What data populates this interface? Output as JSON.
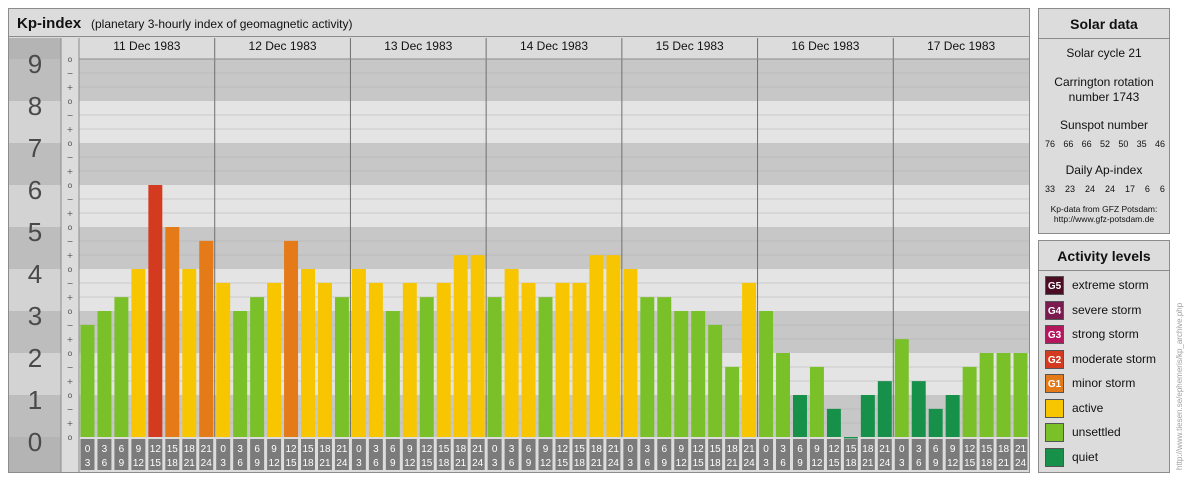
{
  "header": {
    "title": "Kp-index",
    "subtitle": "(planetary 3-hourly index of geomagnetic activity)"
  },
  "chart_data": {
    "type": "bar",
    "ylim": [
      0,
      9
    ],
    "y_ticks": [
      "0",
      "1",
      "2",
      "3",
      "4",
      "5",
      "6",
      "7",
      "8",
      "9"
    ],
    "minor_tick_labels": [
      "o",
      "+",
      "−"
    ],
    "days": [
      "11 Dec 1983",
      "12 Dec 1983",
      "13 Dec 1983",
      "14 Dec 1983",
      "15 Dec 1983",
      "16 Dec 1983",
      "17 Dec 1983"
    ],
    "interval_labels": [
      [
        "0",
        "3"
      ],
      [
        "3",
        "6"
      ],
      [
        "6",
        "9"
      ],
      [
        "9",
        "12"
      ],
      [
        "12",
        "15"
      ],
      [
        "15",
        "18"
      ],
      [
        "18",
        "21"
      ],
      [
        "21",
        "24"
      ]
    ],
    "values": [
      [
        2.67,
        3.0,
        3.33,
        4.0,
        6.0,
        5.0,
        4.0,
        4.67
      ],
      [
        3.67,
        3.0,
        3.33,
        3.67,
        4.67,
        4.0,
        3.67,
        3.33
      ],
      [
        4.0,
        3.67,
        3.0,
        3.67,
        3.33,
        3.67,
        4.33,
        4.33
      ],
      [
        3.33,
        4.0,
        3.67,
        3.33,
        3.67,
        3.67,
        4.33,
        4.33
      ],
      [
        4.0,
        3.33,
        3.33,
        3.0,
        3.0,
        2.67,
        1.67,
        3.67
      ],
      [
        3.0,
        2.0,
        1.0,
        1.67,
        0.67,
        0.0,
        1.0,
        1.33
      ],
      [
        2.33,
        1.33,
        0.67,
        1.0,
        1.67,
        2.0,
        2.0,
        2.0
      ]
    ],
    "color_scale": {
      "quiet": "#17904a",
      "unsettled": "#7ac029",
      "active": "#f7c600",
      "minor": "#e47a18",
      "moderate": "#d43a20"
    },
    "grid": true
  },
  "solar": {
    "title": "Solar data",
    "cycle": "Solar cycle 21",
    "carrington": "Carrington rotation number 1743",
    "sunspot_label": "Sunspot number",
    "sunspot": [
      "76",
      "66",
      "66",
      "52",
      "50",
      "35",
      "46"
    ],
    "ap_label": "Daily Ap-index",
    "ap": [
      "33",
      "23",
      "24",
      "24",
      "17",
      "6",
      "6"
    ],
    "source_line1": "Kp-data from GFZ Potsdam:",
    "source_line2": "http://www.gfz-potsdam.de"
  },
  "levels": {
    "title": "Activity levels",
    "items": [
      {
        "code": "G5",
        "label": "extreme storm",
        "color": "#4a0d24"
      },
      {
        "code": "G4",
        "label": "severe storm",
        "color": "#7a1a4e"
      },
      {
        "code": "G3",
        "label": "strong storm",
        "color": "#b5175e"
      },
      {
        "code": "G2",
        "label": "moderate storm",
        "color": "#d43a20"
      },
      {
        "code": "G1",
        "label": "minor storm",
        "color": "#e47a18"
      },
      {
        "code": "",
        "label": "active",
        "color": "#f7c600"
      },
      {
        "code": "",
        "label": "unsettled",
        "color": "#7ac029"
      },
      {
        "code": "",
        "label": "quiet",
        "color": "#17904a"
      }
    ]
  },
  "watermark": "http://www.tiesen.se/ephemeris/kp_archive.php"
}
